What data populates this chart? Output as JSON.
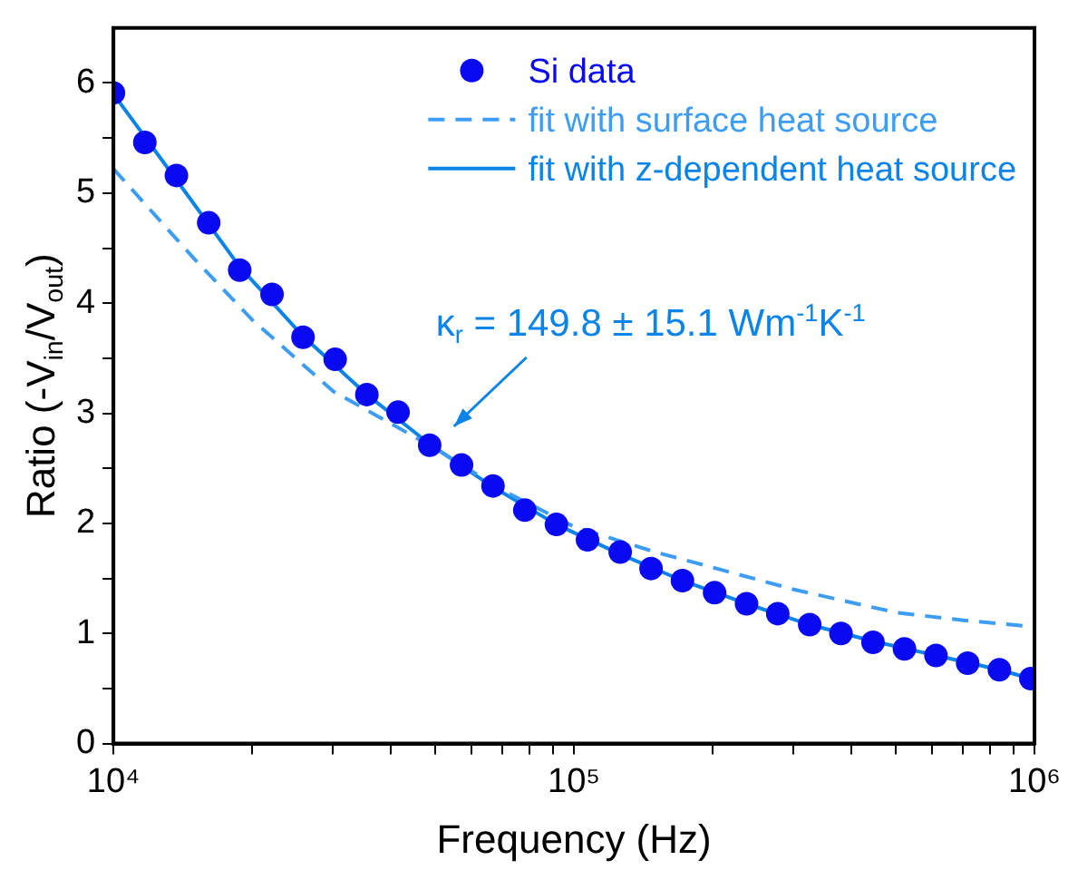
{
  "chart_data": {
    "type": "scatter",
    "xlabel": "Frequency (Hz)",
    "ylabel": "Ratio (-V$_{in}$/V$_{out}$)",
    "log": "x",
    "xlim": [
      10000,
      1000000
    ],
    "xticks": [
      {
        "value": 10000,
        "label": "10⁴"
      },
      {
        "value": 20000,
        "label": null
      },
      {
        "value": 30000,
        "label": null
      },
      {
        "value": 40000,
        "label": null
      },
      {
        "value": 50000,
        "label": null
      },
      {
        "value": 60000,
        "label": null
      },
      {
        "value": 70000,
        "label": null
      },
      {
        "value": 80000,
        "label": null
      },
      {
        "value": 90000,
        "label": null
      },
      {
        "value": 100000,
        "label": "10⁵"
      },
      {
        "value": 200000,
        "label": null
      },
      {
        "value": 300000,
        "label": null
      },
      {
        "value": 400000,
        "label": null
      },
      {
        "value": 500000,
        "label": null
      },
      {
        "value": 600000,
        "label": null
      },
      {
        "value": 700000,
        "label": null
      },
      {
        "value": 800000,
        "label": null
      },
      {
        "value": 900000,
        "label": null
      },
      {
        "value": 1000000,
        "label": "10⁶"
      }
    ],
    "ylim": [
      0,
      6.5
    ],
    "yticks": [
      0,
      {
        "value": 0.5,
        "label": null
      },
      1,
      {
        "value": 1.5,
        "label": null
      },
      2,
      {
        "value": 2.5,
        "label": null
      },
      3,
      {
        "value": 3.5,
        "label": null
      },
      4,
      {
        "value": 4.5,
        "label": null
      },
      5,
      {
        "value": 5.5,
        "label": null
      },
      6
    ],
    "grid": false,
    "legend": "top right",
    "series": [
      {
        "name": "Si data",
        "type": "scatter",
        "marker": "circle",
        "color": "#0a0af0",
        "x": [
          10000,
          11700,
          13700,
          16100,
          18800,
          22100,
          25800,
          30300,
          35500,
          41500,
          48600,
          57000,
          66700,
          78200,
          91600,
          107000,
          126000,
          147000,
          172000,
          202000,
          237000,
          277000,
          325000,
          380000,
          446000,
          522000,
          611000,
          716000,
          839000,
          982000
        ],
        "values": [
          5.91,
          5.46,
          5.16,
          4.73,
          4.3,
          4.08,
          3.69,
          3.49,
          3.17,
          3.01,
          2.71,
          2.53,
          2.34,
          2.12,
          1.99,
          1.85,
          1.74,
          1.59,
          1.48,
          1.37,
          1.27,
          1.18,
          1.08,
          1.0,
          0.92,
          0.86,
          0.8,
          0.73,
          0.67,
          0.59
        ]
      },
      {
        "name": "fit with surface heat source",
        "type": "line",
        "line_style": "dashed",
        "color": "#3d9df5",
        "x": [
          10000,
          15000,
          20000,
          30000,
          50000,
          70000,
          100000,
          150000,
          200000,
          300000,
          500000,
          700000,
          1000000
        ],
        "values": [
          5.22,
          4.4,
          3.85,
          3.2,
          2.68,
          2.3,
          1.97,
          1.74,
          1.6,
          1.4,
          1.19,
          1.12,
          1.06
        ]
      },
      {
        "name": "fit with z-dependent heat source",
        "type": "line",
        "line_style": "solid",
        "color": "#0a84e8",
        "x": [
          10000,
          13700,
          18800,
          25800,
          35500,
          48600,
          66700,
          91600,
          126000,
          172000,
          237000,
          325000,
          446000,
          611000,
          839000,
          1000000
        ],
        "values": [
          5.9,
          5.12,
          4.33,
          3.7,
          3.17,
          2.72,
          2.33,
          1.99,
          1.72,
          1.48,
          1.27,
          1.08,
          0.93,
          0.8,
          0.67,
          0.58
        ]
      }
    ],
    "annotations": [
      "κ$_{r}$ = 149.8 ± 15.1 Wm$^{-1}$K$^{-1}$"
    ]
  }
}
